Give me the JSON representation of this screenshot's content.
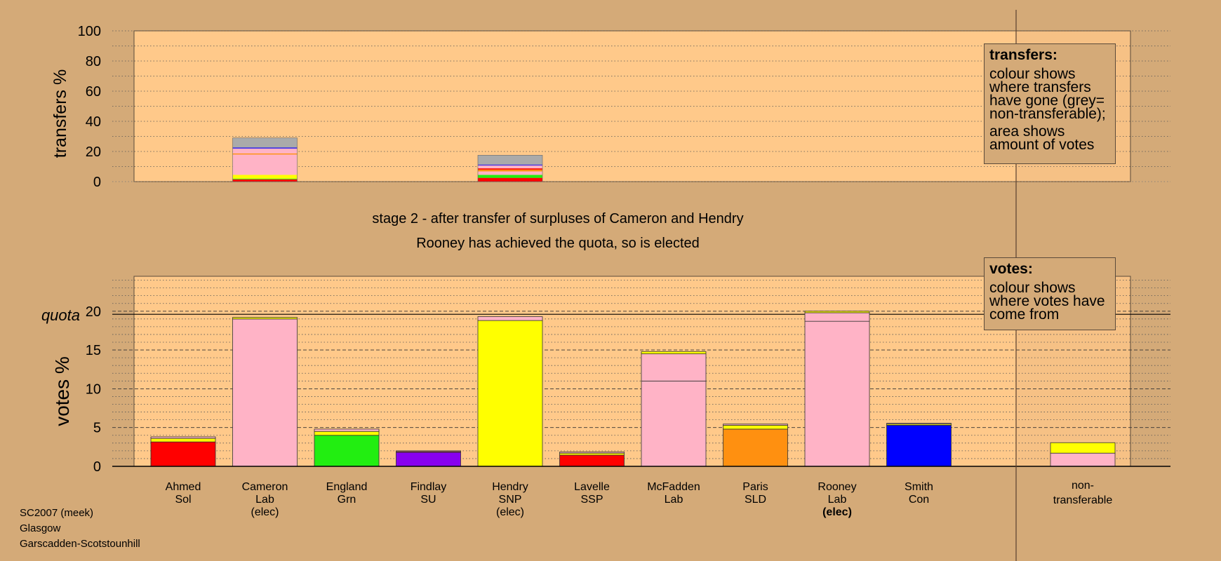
{
  "chart_data": {
    "type": "bar",
    "top_chart": {
      "ylabel": "transfers %",
      "yticks": [
        0,
        20,
        40,
        60,
        80,
        100
      ],
      "ylim": [
        0,
        100
      ],
      "transfers": [
        {
          "candidate_index": 1,
          "segments": [
            {
              "color": "#ff0000",
              "value": 1.5
            },
            {
              "color": "#22ee11",
              "value": 0.5
            },
            {
              "color": "#ffff00",
              "value": 2.5
            },
            {
              "color": "#ffb3c6",
              "value": 13.5
            },
            {
              "color": "#ff9010",
              "value": 0.7
            },
            {
              "color": "#ffb3c6",
              "value": 3.3
            },
            {
              "color": "#0000ff",
              "value": 0.6
            },
            {
              "color": "#aaaaaa",
              "value": 6.4
            }
          ]
        },
        {
          "candidate_index": 4,
          "segments": [
            {
              "color": "#ff0000",
              "value": 2.5
            },
            {
              "color": "#22ee11",
              "value": 2.0
            },
            {
              "color": "#ffb3c6",
              "value": 2.3
            },
            {
              "color": "#ff9010",
              "value": 1.2
            },
            {
              "color": "#ff0000",
              "value": 0.8
            },
            {
              "color": "#ffb3c6",
              "value": 2.0
            },
            {
              "color": "#0000ff",
              "value": 0.5
            },
            {
              "color": "#aaaaaa",
              "value": 6.2
            }
          ]
        }
      ]
    },
    "title_line1": "stage 2 - after transfer of surpluses of Cameron and Hendry",
    "title_line2": "Rooney has achieved the quota, so is elected",
    "bottom_chart": {
      "ylabel": "votes %",
      "quota_label": "quota",
      "quota": 19.6,
      "yticks": [
        0,
        5,
        10,
        15,
        20
      ],
      "ylim": [
        0,
        24.5
      ],
      "categories": [
        {
          "name": "Ahmed",
          "party": "Sol",
          "elected": "",
          "segments": [
            {
              "color": "#ff0000",
              "value": 3.15
            },
            {
              "color": "#ffff00",
              "value": 0.45
            },
            {
              "color": "#ffb3c6",
              "value": 0.2
            }
          ]
        },
        {
          "name": "Cameron",
          "party": "Lab",
          "elected": "(elec)",
          "segments": [
            {
              "color": "#ffb3c6",
              "value": 19.0
            },
            {
              "color": "#ffff00",
              "value": 0.2
            }
          ]
        },
        {
          "name": "England",
          "party": "Grn",
          "elected": "",
          "segments": [
            {
              "color": "#22ee11",
              "value": 4.0
            },
            {
              "color": "#ffff00",
              "value": 0.5
            },
            {
              "color": "#ffb3c6",
              "value": 0.3
            }
          ]
        },
        {
          "name": "Findlay",
          "party": "SU",
          "elected": "",
          "segments": [
            {
              "color": "#8800ee",
              "value": 1.8
            },
            {
              "color": "#ff0000",
              "value": 0.1
            },
            {
              "color": "#ffb3c6",
              "value": 0.1
            }
          ]
        },
        {
          "name": "Hendry",
          "party": "SNP",
          "elected": "(elec)",
          "segments": [
            {
              "color": "#ffff00",
              "value": 18.8
            },
            {
              "color": "#ffb3c6",
              "value": 0.5
            }
          ]
        },
        {
          "name": "Lavelle",
          "party": "SSP",
          "elected": "",
          "segments": [
            {
              "color": "#ff0000",
              "value": 1.45
            },
            {
              "color": "#ffff00",
              "value": 0.25
            },
            {
              "color": "#ffb3c6",
              "value": 0.15
            }
          ]
        },
        {
          "name": "McFadden",
          "party": "Lab",
          "elected": "",
          "segments": [
            {
              "color": "#ffb3c6",
              "value": 11.0
            },
            {
              "color": "#ffb3c6",
              "value": 3.5
            },
            {
              "color": "#ffff00",
              "value": 0.3
            }
          ]
        },
        {
          "name": "Paris",
          "party": "SLD",
          "elected": "",
          "segments": [
            {
              "color": "#ff9010",
              "value": 4.8
            },
            {
              "color": "#ffff00",
              "value": 0.5
            },
            {
              "color": "#ffb3c6",
              "value": 0.15
            }
          ]
        },
        {
          "name": "Rooney",
          "party": "Lab",
          "elected": "(elec)",
          "segments": [
            {
              "color": "#ffb3c6",
              "value": 18.7
            },
            {
              "color": "#ffb3c6",
              "value": 1.1
            },
            {
              "color": "#ffff00",
              "value": 0.2
            }
          ]
        },
        {
          "name": "Smith",
          "party": "Con",
          "elected": "",
          "segments": [
            {
              "color": "#0000ff",
              "value": 5.3
            },
            {
              "color": "#ffff00",
              "value": 0.15
            },
            {
              "color": "#ffb3c6",
              "value": 0.1
            }
          ]
        }
      ],
      "nontransferable": {
        "name": "non-",
        "party": "transferable",
        "segments": [
          {
            "color": "#ffb3c6",
            "value": 1.7
          },
          {
            "color": "#ffff00",
            "value": 1.35
          }
        ]
      }
    }
  },
  "legend_transfers": {
    "title": "transfers:",
    "line1": "colour shows where transfers have gone (grey= non-transferable);",
    "line2": "area shows amount of votes"
  },
  "legend_votes": {
    "title": "votes:",
    "line1": "colour shows where votes have come from"
  },
  "footer": {
    "line1": "SC2007 (meek)",
    "line2": "Glasgow",
    "line3": "Garscadden-Scotstounhill"
  }
}
